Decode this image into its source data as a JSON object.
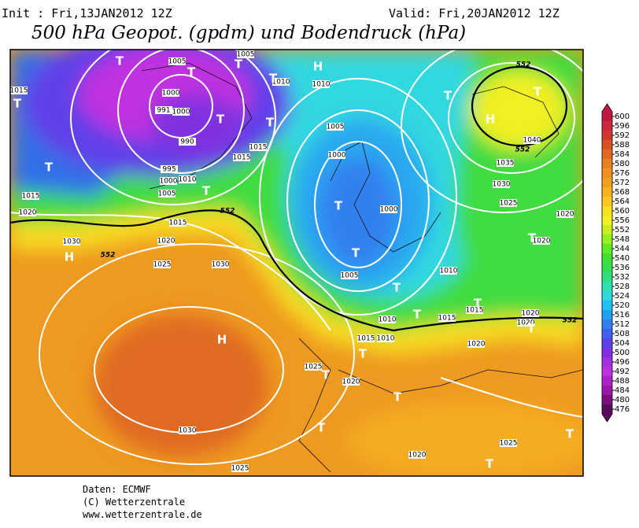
{
  "header": {
    "init": "Init : Fri,13JAN2012 12Z",
    "valid": "Valid: Fri,20JAN2012 12Z",
    "title": "500 hPa Geopot. (gpdm) und Bodendruck (hPa)"
  },
  "map": {
    "labels": [
      "1005",
      "1005",
      "1010",
      "1010",
      "1000",
      "991",
      "1000",
      "990",
      "995",
      "1000",
      "1005",
      "1010",
      "1015",
      "1015",
      "1015",
      "1020",
      "1025",
      "1030",
      "1015",
      "1020",
      "1030",
      "1005",
      "1000",
      "1000",
      "1005",
      "1010",
      "1010",
      "1015",
      "1010",
      "1015",
      "1020",
      "1025",
      "1020",
      "1030",
      "1035",
      "1030",
      "1025",
      "1020",
      "1020",
      "1040",
      "1025",
      "1020",
      "1025",
      "1015",
      "1015",
      "1020",
      "1020",
      "552",
      "552",
      "552",
      "552",
      "552"
    ],
    "markers": [
      "T",
      "T",
      "T",
      "H",
      "T",
      "T",
      "T",
      "T",
      "T",
      "T",
      "T",
      "T",
      "H",
      "H",
      "T",
      "T",
      "H",
      "T",
      "T",
      "T",
      "T",
      "T",
      "T",
      "T",
      "T",
      "T",
      "T",
      "T"
    ]
  },
  "colorbar": {
    "ticks": [
      476,
      480,
      484,
      488,
      492,
      496,
      500,
      504,
      508,
      512,
      516,
      520,
      524,
      528,
      532,
      536,
      540,
      544,
      548,
      552,
      556,
      560,
      564,
      568,
      572,
      576,
      580,
      584,
      588,
      592,
      596,
      600
    ],
    "colors": [
      "#5a0a5a",
      "#7a1080",
      "#9a18a8",
      "#b020c8",
      "#c030e0",
      "#a030e0",
      "#8030e0",
      "#6040e8",
      "#4060f0",
      "#3080f0",
      "#20a0f0",
      "#20c0f0",
      "#30d8e0",
      "#30e0b0",
      "#30e080",
      "#30e050",
      "#40e030",
      "#60e820",
      "#90f020",
      "#c8f020",
      "#f0f020",
      "#f8e020",
      "#f8c820",
      "#f8b020",
      "#f0a020",
      "#f09020",
      "#e88020",
      "#e06820",
      "#d85020",
      "#d03830",
      "#c82840",
      "#c01840"
    ]
  },
  "footer": {
    "source": "Daten: ECMWF",
    "copyright": "(C) Wetterzentrale",
    "url": "www.wetterzentrale.de"
  }
}
